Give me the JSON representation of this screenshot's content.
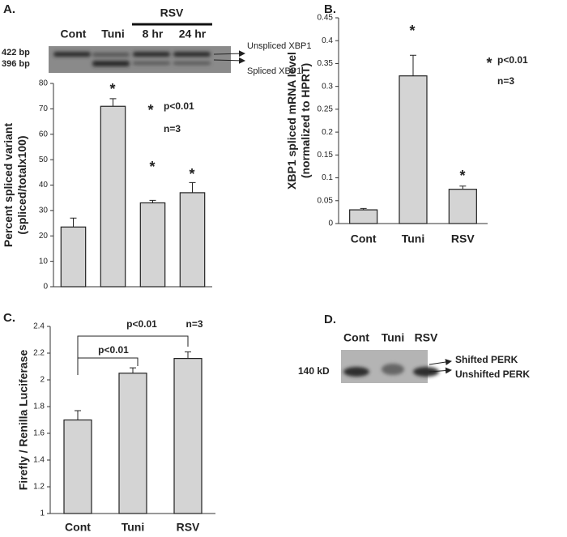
{
  "chart_data": [
    {
      "type": "bar",
      "categories": [
        "Cont",
        "Tuni",
        "8 hr",
        "24 hr"
      ],
      "group_label": "RSV",
      "values": [
        23.5,
        71,
        33,
        37
      ],
      "errors": [
        3.5,
        3,
        1,
        4
      ],
      "color": "#d4d4d4",
      "ylim": [
        0,
        80
      ],
      "yticks": [
        0,
        10,
        20,
        30,
        40,
        50,
        60,
        70,
        80
      ],
      "ylabel": [
        "Percent spliced variant",
        "(spliced/totalx100)"
      ],
      "annotations": [
        "*",
        "*",
        "*",
        "*",
        "p<0.01",
        "n=3"
      ]
    },
    {
      "type": "bar",
      "categories": [
        "Cont",
        "Tuni",
        "RSV"
      ],
      "values": [
        0.03,
        0.323,
        0.075
      ],
      "errors": [
        0.003,
        0.045,
        0.007
      ],
      "color": "#d4d4d4",
      "ylim": [
        0,
        0.45
      ],
      "yticks": [
        0,
        0.05,
        0.1,
        0.15,
        0.2,
        0.25,
        0.3,
        0.35,
        0.4,
        0.45
      ],
      "ylabel": [
        "XBP1 spliced mRNA level",
        "(normalized to HPRT)"
      ],
      "annotations": [
        "*",
        "*",
        "*",
        "p<0.01",
        "n=3"
      ]
    },
    {
      "type": "bar",
      "categories": [
        "Cont",
        "Tuni",
        "RSV"
      ],
      "values": [
        1.7,
        2.05,
        2.16
      ],
      "errors": [
        0.07,
        0.04,
        0.05
      ],
      "color": "#d4d4d4",
      "ylim": [
        1,
        2.4
      ],
      "yticks": [
        1,
        1.2,
        1.4,
        1.6,
        1.8,
        2,
        2.2,
        2.4
      ],
      "ylabel": [
        "Firefly / Renilla Luciferase"
      ],
      "annotations": [
        "p<0.01",
        "p<0.01",
        "n=3"
      ]
    }
  ],
  "panel_labels": [
    "A.",
    "B.",
    "C.",
    "D."
  ],
  "gel_a": {
    "sizes": [
      "422 bp",
      "396 bp"
    ],
    "arrows": [
      "Unspliced XBP1",
      "Spliced XBP1"
    ]
  },
  "gel_d": {
    "lanes": [
      "Cont",
      "Tuni",
      "RSV"
    ],
    "size": "140 kD",
    "arrows": [
      "Shifted PERK",
      "Unshifted PERK"
    ]
  }
}
